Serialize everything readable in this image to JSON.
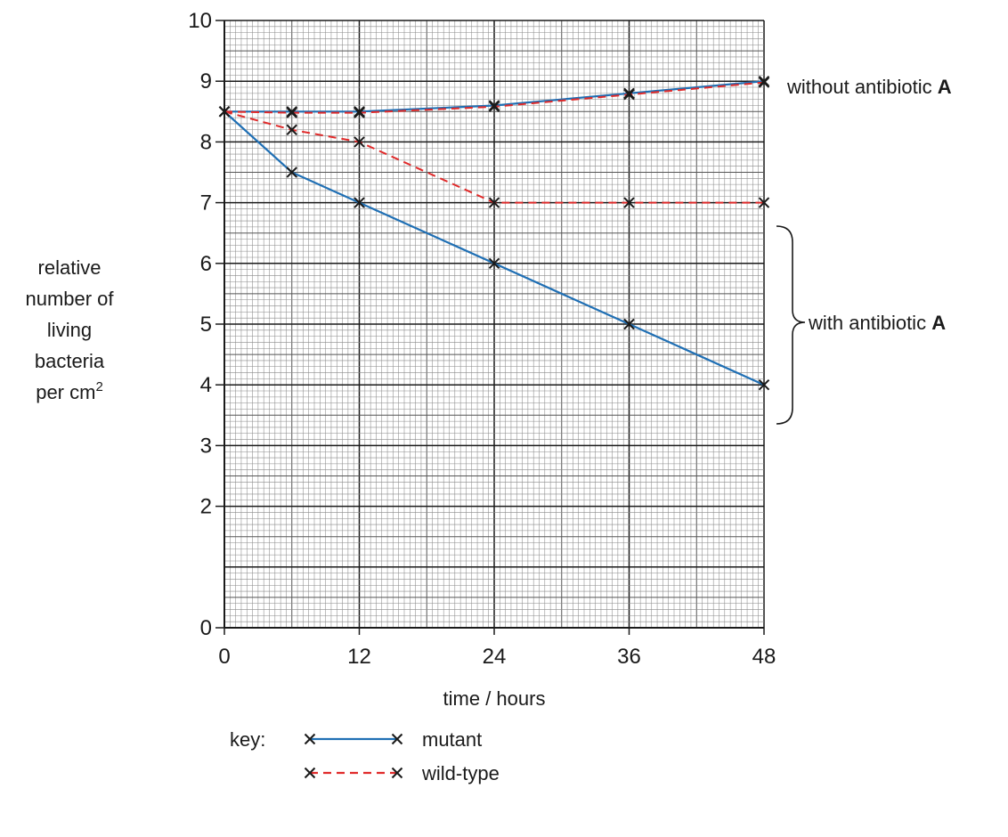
{
  "chart_data": {
    "type": "line",
    "title": "",
    "xlabel": "time / hours",
    "ylabel_lines": [
      "relative",
      "number of",
      "living",
      "bacteria",
      "per cm"
    ],
    "ylabel_superscript": "2",
    "xlim": [
      0,
      48
    ],
    "ylim": [
      0,
      10
    ],
    "x_ticks": [
      0,
      12,
      24,
      36,
      48
    ],
    "y_ticks": [
      0,
      2,
      3,
      4,
      5,
      6,
      7,
      8,
      9,
      10
    ],
    "grid": true,
    "series": [
      {
        "name": "mutant",
        "condition": "without antibiotic A",
        "color": "#1f6fb4",
        "style": "solid",
        "x": [
          0,
          6,
          12,
          24,
          36,
          48
        ],
        "y": [
          8.5,
          8.5,
          8.5,
          8.6,
          8.8,
          9.0
        ]
      },
      {
        "name": "wild-type",
        "condition": "without antibiotic A",
        "color": "#e02a2a",
        "style": "dashed",
        "x": [
          0,
          6,
          12,
          24,
          36,
          48
        ],
        "y": [
          8.5,
          8.48,
          8.48,
          8.58,
          8.78,
          8.98
        ]
      },
      {
        "name": "wild-type",
        "condition": "with antibiotic A",
        "color": "#e02a2a",
        "style": "dashed",
        "x": [
          0,
          6,
          12,
          24,
          36,
          48
        ],
        "y": [
          8.5,
          8.2,
          8.0,
          7.0,
          7.0,
          7.0
        ]
      },
      {
        "name": "mutant",
        "condition": "with antibiotic A",
        "color": "#1f6fb4",
        "style": "solid",
        "x": [
          0,
          6,
          12,
          24,
          36,
          48
        ],
        "y": [
          8.5,
          7.5,
          7.0,
          6.0,
          5.0,
          4.0
        ]
      }
    ],
    "annotations": {
      "without": {
        "text": "without antibiotic ",
        "bold": "A"
      },
      "with": {
        "text": "with antibiotic ",
        "bold": "A"
      }
    },
    "legend": {
      "placement": "bottom",
      "title": "key:",
      "entries": [
        {
          "label": "mutant",
          "color": "#1f6fb4",
          "style": "solid"
        },
        {
          "label": "wild-type",
          "color": "#e02a2a",
          "style": "dashed"
        }
      ]
    }
  }
}
